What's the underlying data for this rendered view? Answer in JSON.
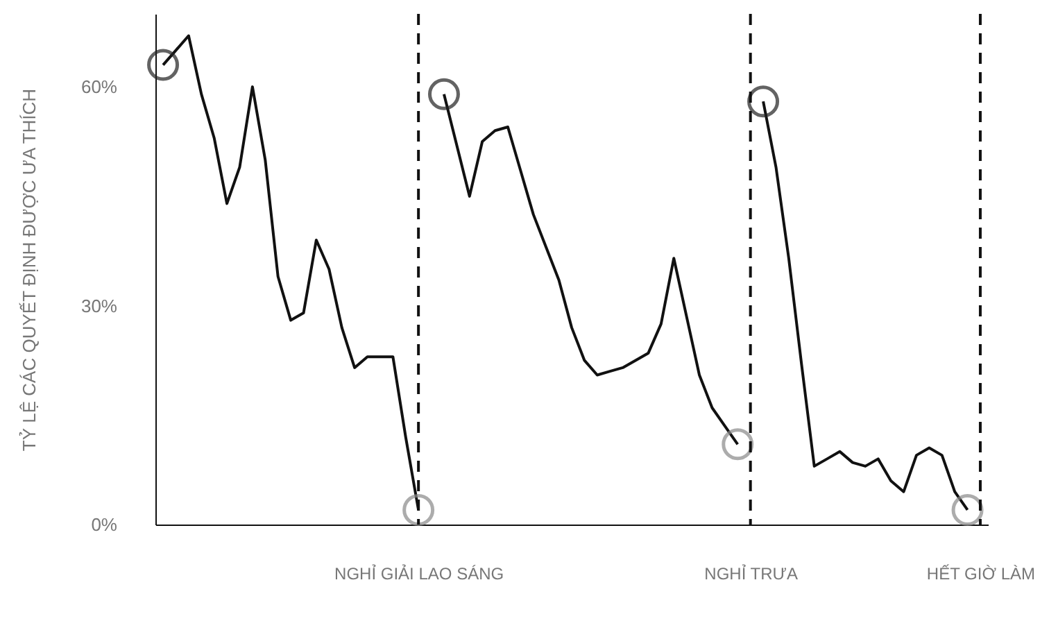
{
  "chart_data": {
    "type": "line",
    "ylabel": "TỶ LỆ CÁC QUYẾT ĐỊNH ĐƯỢC ƯA THÍCH",
    "categories": [
      null,
      null,
      null,
      null,
      null,
      null,
      null,
      null,
      null,
      null,
      null,
      null,
      null,
      null,
      null,
      null,
      null,
      null,
      null,
      null,
      "NGHỈ GIẢI LAO SÁNG",
      null,
      null,
      null,
      null,
      null,
      null,
      null,
      null,
      null,
      null,
      null,
      null,
      null,
      null,
      null,
      null,
      null,
      null,
      null,
      null,
      null,
      null,
      null,
      null,
      null,
      "NGHỈ TRƯA",
      null,
      null,
      null,
      null,
      null,
      null,
      null,
      null,
      null,
      null,
      null,
      null,
      null,
      null,
      null,
      null,
      null,
      "HẾT GIỜ LÀM"
    ],
    "ylim": [
      0,
      70
    ],
    "yticks": [
      {
        "value": 0,
        "label": "0%"
      },
      {
        "value": 30,
        "label": "30%"
      },
      {
        "value": 60,
        "label": "60%"
      }
    ],
    "series": [
      {
        "color": "#111111",
        "values": [
          63,
          65,
          67,
          59,
          53,
          44,
          49,
          60,
          50,
          34,
          28,
          29,
          39,
          35,
          27,
          21.5,
          23,
          23,
          23,
          12,
          2,
          null,
          null,
          null,
          null,
          null,
          null,
          null,
          null,
          null,
          null,
          null,
          null,
          null,
          null,
          null,
          null,
          null,
          null,
          null,
          null,
          null,
          null,
          null,
          null,
          null,
          null,
          null,
          null,
          null,
          null,
          null,
          null,
          null,
          null,
          null,
          null,
          null,
          null,
          null,
          null,
          null,
          null,
          null,
          null
        ]
      },
      {
        "color": "#111111",
        "values": [
          null,
          null,
          null,
          null,
          null,
          null,
          null,
          null,
          null,
          null,
          null,
          null,
          null,
          null,
          null,
          null,
          null,
          null,
          null,
          null,
          null,
          null,
          59,
          52,
          45,
          52.5,
          54,
          54.5,
          48.5,
          42.5,
          38,
          33.5,
          27,
          22.5,
          20.5,
          21,
          21.5,
          22.5,
          23.5,
          27.5,
          36.5,
          28.5,
          20.5,
          16,
          13.5,
          11,
          null,
          null,
          null,
          null,
          null,
          null,
          null,
          null,
          null,
          null,
          null,
          null,
          null,
          null,
          null,
          null,
          null,
          null,
          null
        ]
      },
      {
        "color": "#111111",
        "values": [
          null,
          null,
          null,
          null,
          null,
          null,
          null,
          null,
          null,
          null,
          null,
          null,
          null,
          null,
          null,
          null,
          null,
          null,
          null,
          null,
          null,
          null,
          null,
          null,
          null,
          null,
          null,
          null,
          null,
          null,
          null,
          null,
          null,
          null,
          null,
          null,
          null,
          null,
          null,
          null,
          null,
          null,
          null,
          null,
          null,
          null,
          null,
          58,
          49,
          36.5,
          22,
          8,
          9,
          10,
          8.5,
          8,
          9,
          6,
          4.5,
          9.5,
          10.5,
          9.5,
          4.5,
          2,
          null
        ]
      },
      {
        "type": "scatter",
        "color": "#222222",
        "values": [
          63,
          null,
          null,
          null,
          null,
          null,
          null,
          null,
          null,
          null,
          null,
          null,
          null,
          null,
          null,
          null,
          null,
          null,
          null,
          null,
          null,
          null,
          59,
          null,
          null,
          null,
          null,
          null,
          null,
          null,
          null,
          null,
          null,
          null,
          null,
          null,
          null,
          null,
          null,
          null,
          null,
          null,
          null,
          null,
          null,
          null,
          null,
          58,
          null,
          null,
          null,
          null,
          null,
          null,
          null,
          null,
          null,
          null,
          null,
          null,
          null,
          null,
          null,
          null,
          null
        ]
      },
      {
        "type": "scatter",
        "color": "#8a8a8a",
        "values": [
          null,
          null,
          null,
          null,
          null,
          null,
          null,
          null,
          null,
          null,
          null,
          null,
          null,
          null,
          null,
          null,
          null,
          null,
          null,
          null,
          2,
          null,
          null,
          null,
          null,
          null,
          null,
          null,
          null,
          null,
          null,
          null,
          null,
          null,
          null,
          null,
          null,
          null,
          null,
          null,
          null,
          null,
          null,
          null,
          null,
          11,
          null,
          null,
          null,
          null,
          null,
          null,
          null,
          null,
          null,
          null,
          null,
          null,
          null,
          null,
          null,
          null,
          null,
          2,
          null
        ]
      }
    ],
    "ref_lines": [
      {
        "axis": "x",
        "value": "NGHỈ GIẢI LAO SÁNG",
        "line_style": "dashed"
      },
      {
        "axis": "x",
        "value": "NGHỈ TRƯA",
        "line_style": "dashed"
      },
      {
        "axis": "x",
        "value": "HẾT GIỜ LÀM",
        "line_style": "dashed"
      }
    ]
  }
}
